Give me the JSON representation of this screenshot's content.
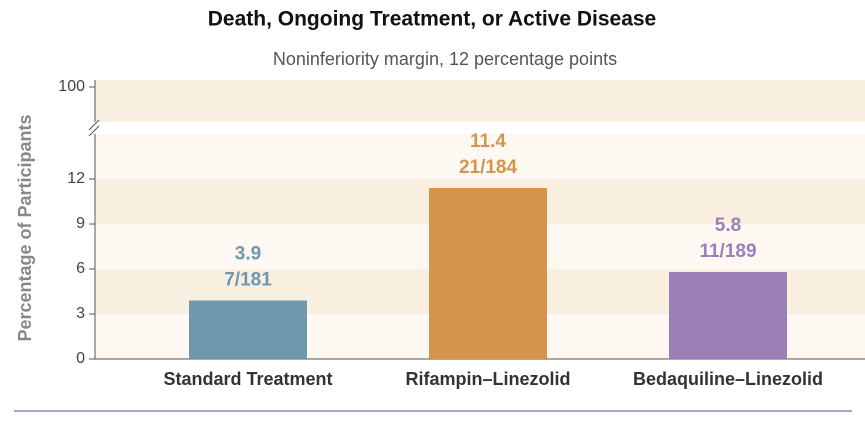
{
  "chart_data": {
    "type": "bar",
    "title": "Death, Ongoing Treatment, or Active Disease",
    "subtitle": "Noninferiority margin, 12 percentage points",
    "y_label": "Percentage of Participants",
    "categories": [
      "Standard Treatment",
      "Rifampin–Linezolid",
      "Bedaquiline–Linezolid"
    ],
    "values": [
      3.9,
      11.4,
      5.8
    ],
    "counts": [
      "7/181",
      "21/184",
      "11/189"
    ],
    "colors": [
      "#6f97ae",
      "#d4954a",
      "#9b80b8"
    ],
    "ylim": [
      0,
      100
    ],
    "yticks": [
      0,
      3,
      6,
      9,
      12,
      100
    ],
    "axis_break": true
  }
}
